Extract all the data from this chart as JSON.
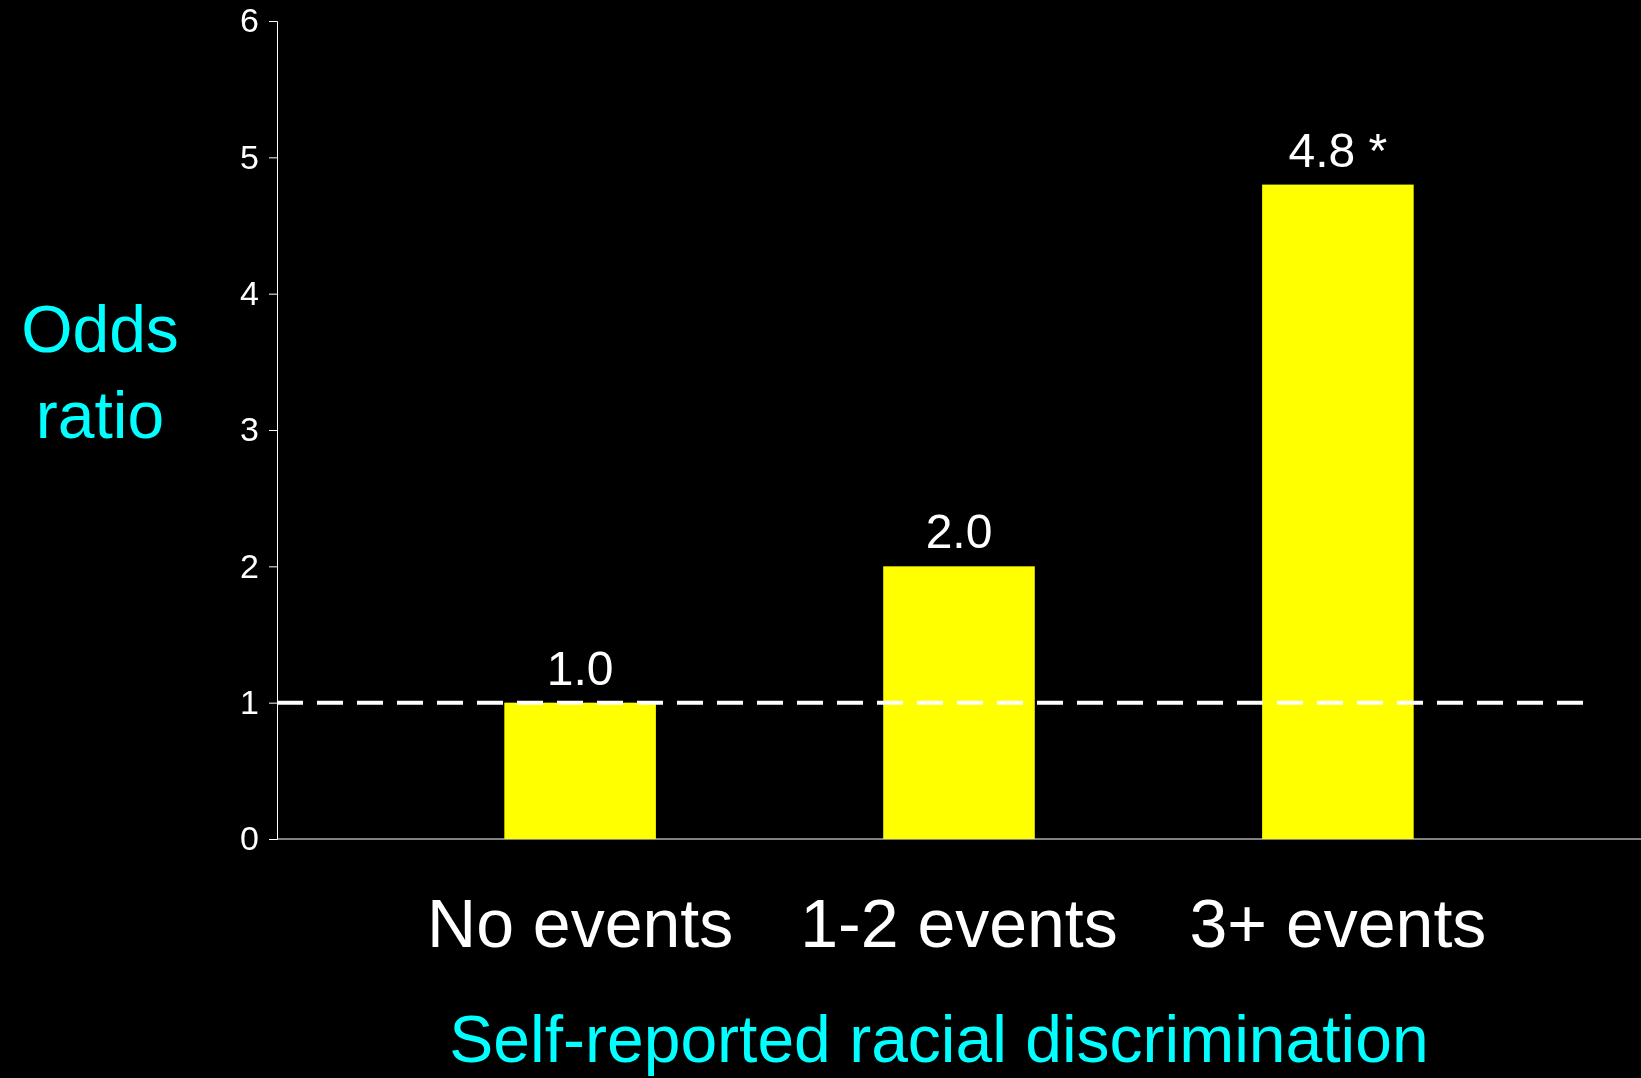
{
  "chart_data": {
    "type": "bar",
    "xlabel": "Self-reported racial discrimination",
    "ylabel": "Odds ratio",
    "categories": [
      "No events",
      "1-2 events",
      "3+ events"
    ],
    "values": [
      1.0,
      2.0,
      4.8
    ],
    "color": "#ffff00",
    "value_labels": [
      "1.0",
      "2.0",
      "4.8 *"
    ],
    "ylim": [
      0,
      6
    ],
    "yticks": [
      0,
      1,
      2,
      3,
      4,
      5,
      6
    ],
    "grid": false,
    "ref_lines": [
      {
        "axis": "y",
        "value": 1,
        "color": "#ffffff",
        "line_style": "dashed"
      }
    ]
  }
}
